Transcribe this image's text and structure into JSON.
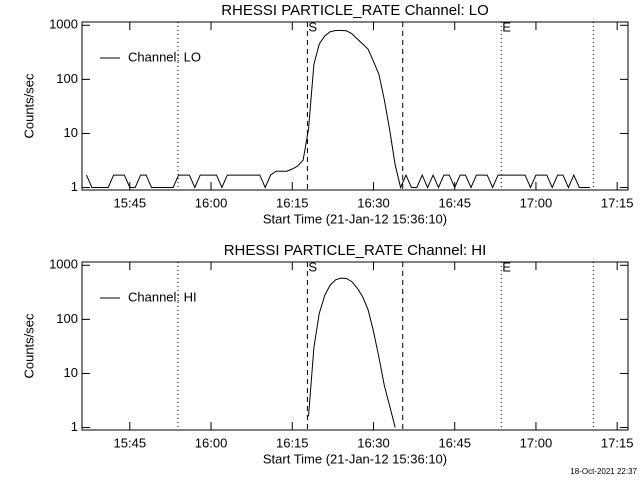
{
  "chart_data": [
    {
      "type": "line",
      "title": "RHESSI PARTICLE_RATE Channel: LO",
      "xlabel": "Start Time (21-Jan-12 15:36:10)",
      "ylabel": "Counts/sec",
      "xlim": [
        936.17,
        1037
      ],
      "ylim": [
        0.9,
        1150
      ],
      "log_y": true,
      "legend": "upper left",
      "xticks": [
        {
          "value": 945,
          "label": "15:45"
        },
        {
          "value": 960,
          "label": "16:00"
        },
        {
          "value": 975,
          "label": "16:15"
        },
        {
          "value": 990,
          "label": "16:30"
        },
        {
          "value": 1005,
          "label": "16:45"
        },
        {
          "value": 1020,
          "label": "17:00"
        },
        {
          "value": 1035,
          "label": "17:15"
        }
      ],
      "yticks": [
        1,
        10,
        100,
        1000
      ],
      "vlines": [
        {
          "x": 953.9,
          "style": "dotted"
        },
        {
          "x": 977.8,
          "style": "dashed"
        },
        {
          "x": 995.4,
          "style": "dashed"
        },
        {
          "x": 1013.6,
          "style": "dotted"
        },
        {
          "x": 1030.6,
          "style": "dotted"
        }
      ],
      "annotations": [
        {
          "text": "S",
          "x": 977.8
        },
        {
          "text": "E",
          "x": 1013.6
        }
      ],
      "series": [
        {
          "name": "Channel: LO",
          "color": "#000000",
          "x": [
            937,
            938,
            939,
            940,
            941,
            942,
            943,
            944,
            945,
            946,
            947,
            948,
            949,
            950,
            951,
            952,
            953,
            954,
            955,
            956,
            957,
            958,
            959,
            960,
            961,
            962,
            963,
            964,
            965,
            966,
            967,
            968,
            969,
            970,
            971,
            972,
            973,
            974,
            975,
            976,
            977,
            978,
            979,
            980,
            981,
            982,
            983,
            984,
            985,
            986,
            987,
            988,
            989,
            990,
            991,
            992,
            993,
            994,
            995,
            996,
            997,
            998,
            999,
            1000,
            1001,
            1002,
            1003,
            1004,
            1005,
            1006,
            1007,
            1008,
            1009,
            1010,
            1011,
            1012,
            1013,
            1014,
            1015,
            1016,
            1017,
            1018,
            1019,
            1020,
            1021,
            1022,
            1023,
            1024,
            1025,
            1026,
            1027,
            1028,
            1029,
            1030
          ],
          "values": [
            1.7,
            1,
            1,
            1,
            1,
            1.7,
            1.7,
            1.7,
            1,
            1,
            1.7,
            1.7,
            1,
            1,
            1,
            1,
            1,
            1.7,
            1.7,
            1.7,
            1,
            1.7,
            1.7,
            1.7,
            1.7,
            1,
            1.7,
            1.7,
            1.7,
            1.7,
            1.7,
            1.7,
            1.7,
            1,
            1.7,
            2,
            2,
            2,
            2.2,
            2.5,
            3.2,
            12,
            190,
            450,
            640,
            760,
            800,
            800,
            790,
            700,
            560,
            450,
            360,
            215,
            124,
            42,
            11.6,
            2.6,
            1,
            1.7,
            1,
            1,
            1.7,
            1,
            1.7,
            1,
            1.7,
            1.7,
            1,
            1.7,
            1.7,
            1,
            1.7,
            1.7,
            1.7,
            1,
            1.7,
            1.7,
            1.7,
            1.7,
            1.7,
            1.7,
            1,
            1.7,
            1.7,
            1.7,
            1,
            1.7,
            1.7,
            1,
            1.7,
            1,
            1,
            1
          ]
        }
      ]
    },
    {
      "type": "line",
      "title": "RHESSI PARTICLE_RATE Channel: HI",
      "xlabel": "Start Time (21-Jan-12 15:36:10)",
      "ylabel": "Counts/sec",
      "xlim": [
        936.17,
        1037
      ],
      "ylim": [
        0.9,
        1150
      ],
      "log_y": true,
      "legend": "upper left",
      "xticks": [
        {
          "value": 945,
          "label": "15:45"
        },
        {
          "value": 960,
          "label": "16:00"
        },
        {
          "value": 975,
          "label": "16:15"
        },
        {
          "value": 990,
          "label": "16:30"
        },
        {
          "value": 1005,
          "label": "16:45"
        },
        {
          "value": 1020,
          "label": "17:00"
        },
        {
          "value": 1035,
          "label": "17:15"
        }
      ],
      "yticks": [
        1,
        10,
        100,
        1000
      ],
      "vlines": [
        {
          "x": 953.9,
          "style": "dotted"
        },
        {
          "x": 977.8,
          "style": "dashed"
        },
        {
          "x": 995.4,
          "style": "dashed"
        },
        {
          "x": 1013.6,
          "style": "dotted"
        },
        {
          "x": 1030.6,
          "style": "dotted"
        }
      ],
      "annotations": [
        {
          "text": "S",
          "x": 977.8
        },
        {
          "text": "E",
          "x": 1013.6
        }
      ],
      "series": [
        {
          "name": "Channel: HI",
          "color": "#000000",
          "x": [
            978,
            979,
            980,
            981,
            982,
            983,
            984,
            985,
            986,
            987,
            988,
            989,
            990,
            991,
            992,
            993,
            994
          ],
          "values": [
            1.6,
            30,
            130,
            280,
            430,
            540,
            580,
            570,
            500,
            380,
            260,
            150,
            60,
            20,
            6,
            2.5,
            1
          ]
        }
      ]
    }
  ],
  "footer": "18-Oct-2021 22:37"
}
